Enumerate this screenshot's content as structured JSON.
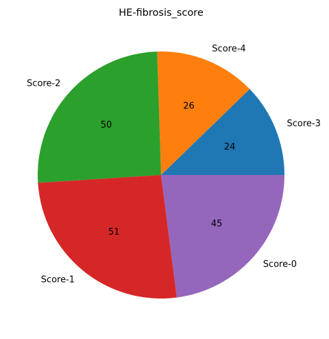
{
  "chart_data": {
    "type": "pie",
    "title": "HE-fibrosis_score",
    "slices": [
      {
        "label": "Score-3",
        "value": 24,
        "color": "#1f77b4"
      },
      {
        "label": "Score-4",
        "value": 26,
        "color": "#ff7f0e"
      },
      {
        "label": "Score-2",
        "value": 50,
        "color": "#2ca02c"
      },
      {
        "label": "Score-1",
        "value": 51,
        "color": "#d62728"
      },
      {
        "label": "Score-0",
        "value": 45,
        "color": "#9467bd"
      }
    ],
    "start_angle_deg": 0,
    "direction": "counterclockwise",
    "show_values": true
  }
}
